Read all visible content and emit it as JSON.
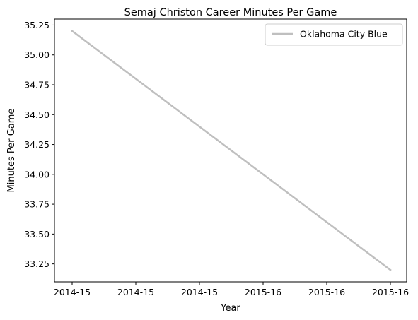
{
  "chart_data": {
    "type": "line",
    "title": "Semaj Christon Career Minutes Per Game",
    "xlabel": "Year",
    "ylabel": "Minutes Per Game",
    "x_tick_labels": [
      "2014-15",
      "2014-15",
      "2014-15",
      "2015-16",
      "2015-16",
      "2015-16"
    ],
    "y_tick_labels": [
      "33.25",
      "33.50",
      "33.75",
      "34.00",
      "34.25",
      "34.50",
      "34.75",
      "35.00",
      "35.25"
    ],
    "y_ticks": [
      33.25,
      33.5,
      33.75,
      34.0,
      34.25,
      34.5,
      34.75,
      35.0,
      35.25
    ],
    "ylim": [
      33.1,
      35.3
    ],
    "x": [
      "2014-15",
      "2015-16"
    ],
    "series": [
      {
        "name": "Oklahoma City Blue",
        "color": "#bfbfbf",
        "values": [
          35.2,
          33.2
        ]
      }
    ],
    "legend_position": "top-right",
    "grid": false
  }
}
